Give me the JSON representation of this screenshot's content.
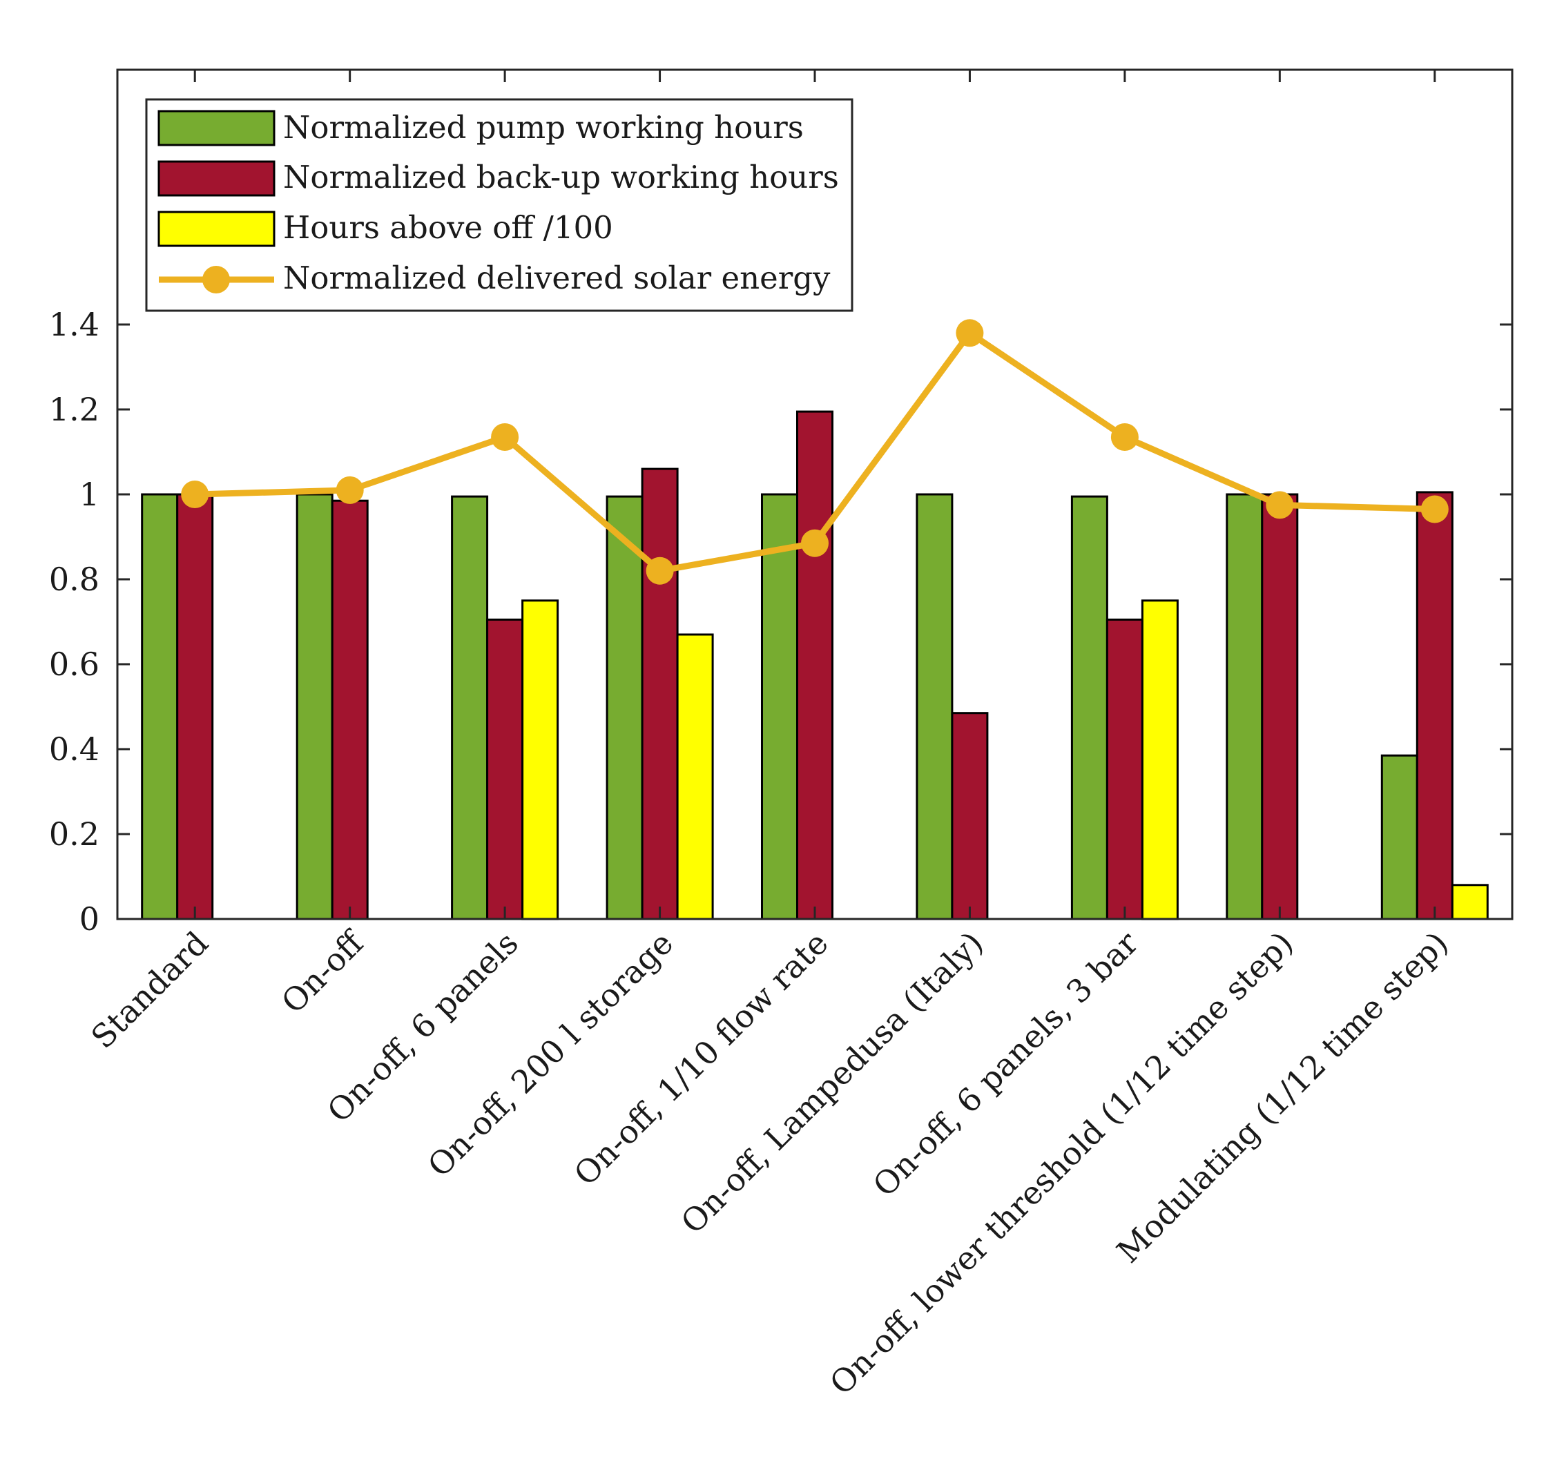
{
  "chart_data": {
    "type": "bar",
    "title": "",
    "xlabel": "",
    "ylabel": "",
    "ylim": [
      0,
      2
    ],
    "yticks": [
      "0",
      "0.2",
      "0.4",
      "0.6",
      "0.8",
      "1",
      "1.2",
      "1.4"
    ],
    "ytick_values": [
      0,
      0.2,
      0.4,
      0.6,
      0.8,
      1.0,
      1.2,
      1.4
    ],
    "grid": false,
    "legend_position": "top-left",
    "categories": [
      "Standard",
      "On-off",
      "On-off, 6 panels",
      "On-off, 200 l storage",
      "On-off, 1/10 flow rate",
      "On-off, Lampedusa (Italy)",
      "On-off, 6 panels, 3 bar",
      "On-off, lower threshold (1/12 time step)",
      "Modulating (1/12 time step)"
    ],
    "series": [
      {
        "name": "Normalized pump working hours",
        "kind": "bar",
        "color": "#77ac30",
        "values": [
          1.0,
          1.0,
          0.995,
          0.995,
          1.0,
          1.0,
          0.995,
          1.0,
          0.385
        ]
      },
      {
        "name": "Normalized back-up working hours",
        "kind": "bar",
        "color": "#a2142f",
        "values": [
          1.0,
          0.985,
          0.705,
          1.06,
          1.195,
          0.485,
          0.705,
          1.0,
          1.005
        ]
      },
      {
        "name": "Hours above off /100",
        "kind": "bar",
        "color": "#ffff00",
        "values": [
          0,
          0,
          0.75,
          0.67,
          0,
          0,
          0.75,
          0,
          0.08
        ]
      },
      {
        "name": "Normalized delivered solar energy",
        "kind": "line",
        "color": "#edb120",
        "values": [
          1.0,
          1.01,
          1.135,
          0.82,
          0.885,
          1.38,
          1.135,
          0.975,
          0.965
        ]
      }
    ]
  }
}
